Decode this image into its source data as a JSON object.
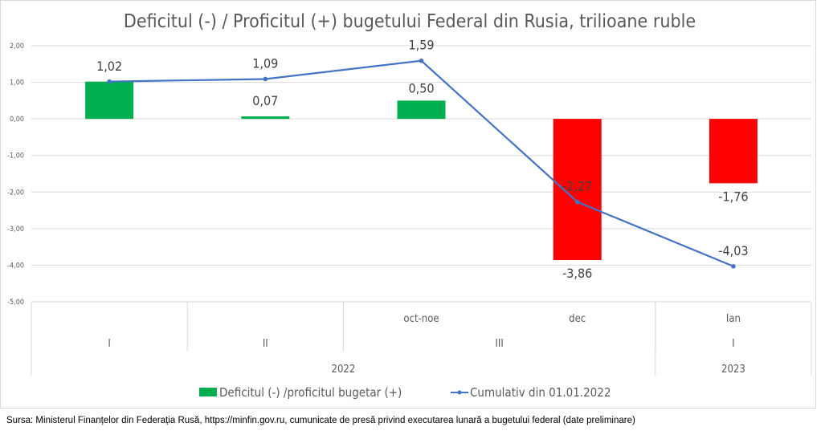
{
  "chart_data": {
    "type": "bar",
    "title": "Deficitul (-) / Proficitul (+) bugetului Federal din Rusia, trilioane ruble",
    "categories": [
      {
        "month": "",
        "quarter": "I",
        "year": "2022"
      },
      {
        "month": "",
        "quarter": "II",
        "year": "2022"
      },
      {
        "month": "oct-noe",
        "quarter": "III",
        "year": "2022"
      },
      {
        "month": "dec",
        "quarter": "III",
        "year": "2022"
      },
      {
        "month": "Ian",
        "quarter": "I",
        "year": "2023"
      }
    ],
    "quarter_groups": [
      {
        "label": "I",
        "span": 1
      },
      {
        "label": "II",
        "span": 1
      },
      {
        "label": "III",
        "span": 2
      },
      {
        "label": "I",
        "span": 1
      }
    ],
    "year_groups": [
      {
        "label": "2022",
        "span": 4
      },
      {
        "label": "2023",
        "span": 1
      }
    ],
    "series": [
      {
        "name": "Deficitul (-) /proficitul bugetar (+)",
        "type": "bar",
        "values": [
          1.02,
          0.07,
          0.5,
          -3.86,
          -1.76
        ],
        "labels": [
          "1,02",
          "0,07",
          "0,50",
          "-3,86",
          "-1,76"
        ],
        "colors": [
          "#00b050",
          "#00b050",
          "#00b050",
          "#ff0000",
          "#ff0000"
        ]
      },
      {
        "name": "Cumulativ din 01.01.2022",
        "type": "line",
        "values": [
          1.02,
          1.09,
          1.59,
          -2.27,
          -4.03
        ],
        "labels": [
          "1,02",
          "1,09",
          "1,59",
          "-2,27",
          "-4,03"
        ],
        "color": "#4472c4"
      }
    ],
    "ylim": [
      -5,
      2
    ],
    "yticks": [
      "2,00",
      "1,00",
      "0,00",
      "-1,00",
      "-2,00",
      "-3,00",
      "-4,00",
      "-5,00"
    ],
    "grid": true,
    "legend_position": "bottom",
    "legend_color": "#00b050"
  },
  "source": "Sursa: Ministerul Finanțelor din Federația Rusă, https://minfin.gov.ru,  cumunicate de presă privind executarea lunară a bugetului federal (date preliminare)"
}
